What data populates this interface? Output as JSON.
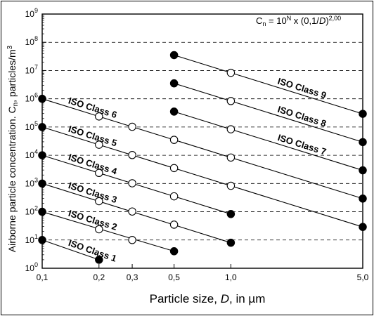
{
  "chart_data": {
    "type": "line",
    "xscale": "log",
    "yscale": "log",
    "xlim": [
      0.1,
      5.0
    ],
    "ylim": [
      1,
      1000000000
    ],
    "xticks": [
      0.1,
      0.2,
      0.3,
      0.5,
      1.0,
      5.0
    ],
    "xtick_labels": [
      "0,1",
      "0,2",
      "0,3",
      "0,5",
      "1,0",
      "5,0"
    ],
    "ytick_exponents": [
      0,
      1,
      2,
      3,
      4,
      5,
      6,
      7,
      8,
      9
    ],
    "ytick_base": "10",
    "xlabel_prefix": "Particle size,",
    "xlabel_var": "D",
    "xlabel_suffix": ", in µm",
    "ylabel_main": "Airborne particle concentration. C",
    "ylabel_sub": "n",
    "ylabel_mid": ", particles/m",
    "ylabel_sup": "3",
    "formula": {
      "c": "C",
      "c_sub": "n",
      "eq": " = 10",
      "n_sup": "N",
      "mid": " x (0,1/",
      "d": "D",
      "close": ")",
      "exp_sup": "2,00"
    },
    "grid": "dashed horizontal at 10^1 to 10^8",
    "series": [
      {
        "name": "ISO Class 1",
        "N": 1,
        "x": [
          0.1,
          0.2
        ],
        "y": [
          10,
          2
        ],
        "markers": [
          "filled",
          "filled"
        ]
      },
      {
        "name": "ISO Class 2",
        "N": 2,
        "x": [
          0.1,
          0.2,
          0.3,
          0.5
        ],
        "y": [
          100,
          24,
          10,
          4
        ],
        "markers": [
          "filled",
          "open",
          "open",
          "filled"
        ]
      },
      {
        "name": "ISO Class 3",
        "N": 3,
        "x": [
          0.1,
          0.2,
          0.3,
          0.5,
          1.0
        ],
        "y": [
          1000,
          237,
          102,
          35,
          8
        ],
        "markers": [
          "filled",
          "open",
          "open",
          "open",
          "filled"
        ]
      },
      {
        "name": "ISO Class 4",
        "N": 4,
        "x": [
          0.1,
          0.2,
          0.3,
          0.5,
          1.0
        ],
        "y": [
          10000,
          2370,
          1020,
          352,
          83
        ],
        "markers": [
          "filled",
          "open",
          "open",
          "open",
          "filled"
        ]
      },
      {
        "name": "ISO Class 5",
        "N": 5,
        "x": [
          0.1,
          0.2,
          0.3,
          0.5,
          1.0,
          5.0
        ],
        "y": [
          100000,
          23700,
          10200,
          3520,
          832,
          29
        ],
        "markers": [
          "filled",
          "open",
          "open",
          "open",
          "open",
          "filled"
        ]
      },
      {
        "name": "ISO Class 6",
        "N": 6,
        "x": [
          0.1,
          0.2,
          0.3,
          0.5,
          1.0,
          5.0
        ],
        "y": [
          1000000,
          237000,
          102000,
          35200,
          8320,
          293
        ],
        "markers": [
          "filled",
          "open",
          "open",
          "open",
          "open",
          "filled"
        ]
      },
      {
        "name": "ISO Class 7",
        "N": 7,
        "x": [
          0.5,
          1.0,
          5.0
        ],
        "y": [
          352000,
          83200,
          2930
        ],
        "markers": [
          "filled",
          "open",
          "filled"
        ]
      },
      {
        "name": "ISO Class 8",
        "N": 8,
        "x": [
          0.5,
          1.0,
          5.0
        ],
        "y": [
          3520000,
          832000,
          29300
        ],
        "markers": [
          "filled",
          "open",
          "filled"
        ]
      },
      {
        "name": "ISO Class 9",
        "N": 9,
        "x": [
          0.5,
          1.0,
          5.0
        ],
        "y": [
          35200000,
          8320000,
          293000
        ],
        "markers": [
          "filled",
          "open",
          "filled"
        ]
      }
    ]
  }
}
